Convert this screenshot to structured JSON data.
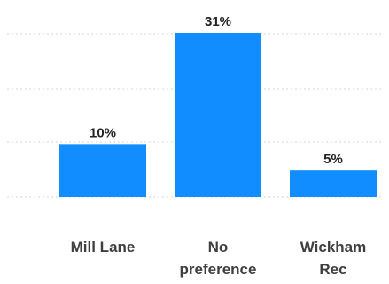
{
  "chart_data": {
    "type": "bar",
    "categories": [
      "Mill Lane",
      "No preference",
      "Wickham Rec"
    ],
    "category_lines": [
      [
        "Mill Lane"
      ],
      [
        "No",
        "preference"
      ],
      [
        "Wickham",
        "Rec"
      ]
    ],
    "values": [
      10,
      31,
      5
    ],
    "data_labels": [
      "10%",
      "31%",
      "5%"
    ],
    "ylim": [
      0,
      33
    ],
    "grid": true,
    "colors": {
      "bar": "#118DFF",
      "gridline": "#d6d6d6"
    }
  }
}
